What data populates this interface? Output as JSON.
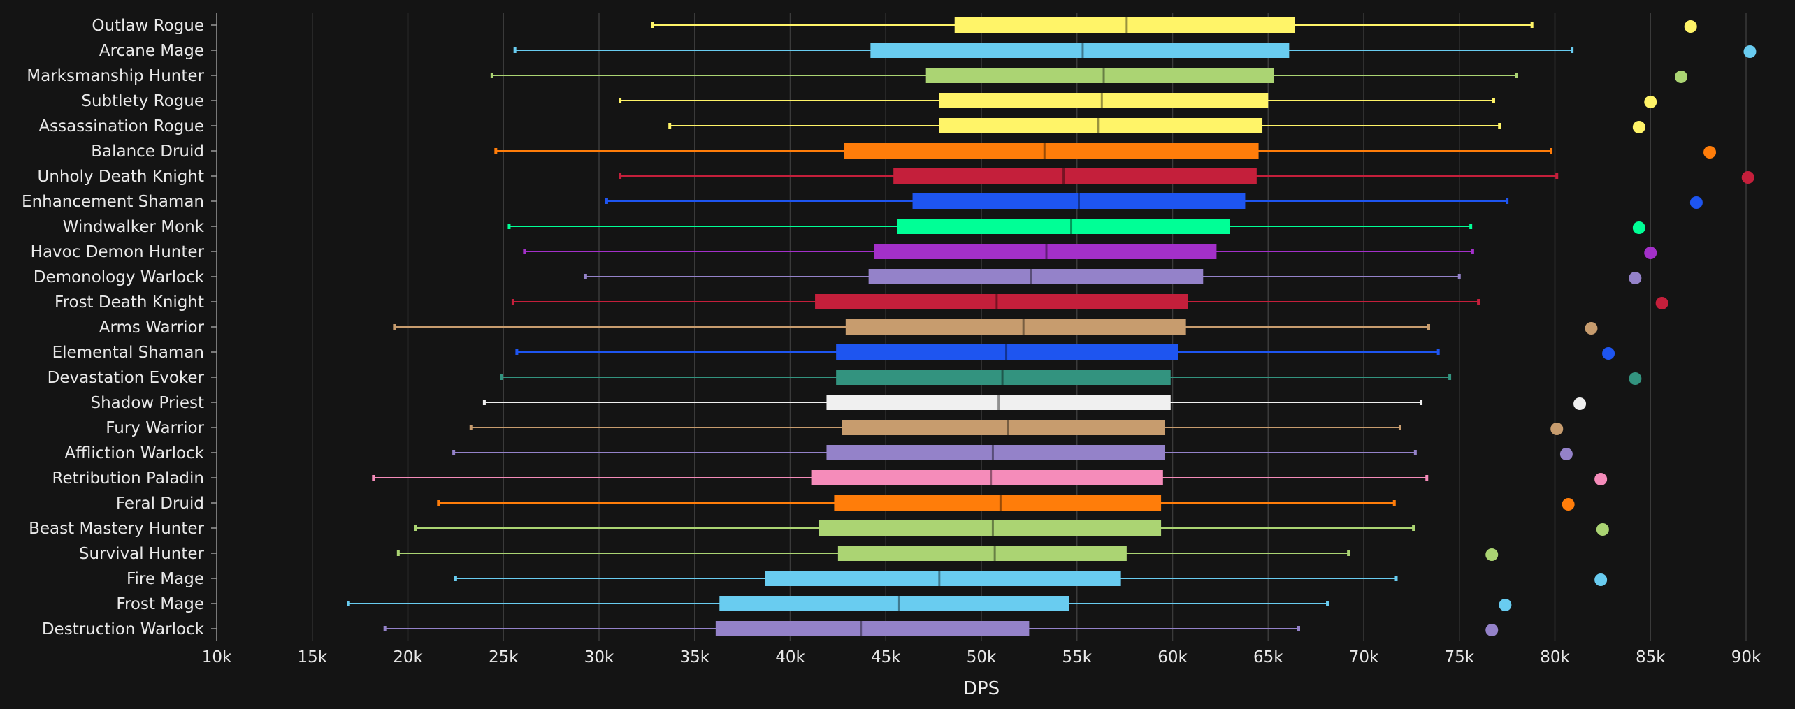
{
  "chart_data": {
    "type": "box",
    "xlabel": "DPS",
    "ylabel": "",
    "xlim": [
      10000,
      90000
    ],
    "x_ticks": [
      10000,
      15000,
      20000,
      25000,
      30000,
      35000,
      40000,
      45000,
      50000,
      55000,
      60000,
      65000,
      70000,
      75000,
      80000,
      85000,
      90000
    ],
    "x_tick_labels": [
      "10k",
      "15k",
      "20k",
      "25k",
      "30k",
      "35k",
      "40k",
      "45k",
      "50k",
      "55k",
      "60k",
      "65k",
      "70k",
      "75k",
      "80k",
      "85k",
      "90k"
    ],
    "grid": "vertical",
    "series": [
      {
        "name": "Outlaw Rogue",
        "color": "#fff468",
        "min": 32800,
        "q1": 48600,
        "median": 57600,
        "q3": 66400,
        "max": 78800,
        "outlier": 87100
      },
      {
        "name": "Arcane Mage",
        "color": "#69ccf0",
        "min": 25600,
        "q1": 44200,
        "median": 55300,
        "q3": 66100,
        "max": 80900,
        "outlier": 90200
      },
      {
        "name": "Marksmanship Hunter",
        "color": "#abd473",
        "min": 24400,
        "q1": 47100,
        "median": 56400,
        "q3": 65300,
        "max": 78000,
        "outlier": 86600
      },
      {
        "name": "Subtlety Rogue",
        "color": "#fff468",
        "min": 31100,
        "q1": 47800,
        "median": 56300,
        "q3": 65000,
        "max": 76800,
        "outlier": 85000
      },
      {
        "name": "Assassination Rogue",
        "color": "#fff468",
        "min": 33700,
        "q1": 47800,
        "median": 56100,
        "q3": 64700,
        "max": 77100,
        "outlier": 84400
      },
      {
        "name": "Balance Druid",
        "color": "#ff7d0a",
        "min": 24600,
        "q1": 42800,
        "median": 53300,
        "q3": 64500,
        "max": 79800,
        "outlier": 88100
      },
      {
        "name": "Unholy Death Knight",
        "color": "#c41f3b",
        "min": 31100,
        "q1": 45400,
        "median": 54300,
        "q3": 64400,
        "max": 80100,
        "outlier": 90100
      },
      {
        "name": "Enhancement Shaman",
        "color": "#1e55f0",
        "min": 30400,
        "q1": 46400,
        "median": 55100,
        "q3": 63800,
        "max": 77500,
        "outlier": 87400
      },
      {
        "name": "Windwalker Monk",
        "color": "#00ff96",
        "min": 25300,
        "q1": 45600,
        "median": 54700,
        "q3": 63000,
        "max": 75600,
        "outlier": 84400
      },
      {
        "name": "Havoc Demon Hunter",
        "color": "#a330c9",
        "min": 26100,
        "q1": 44400,
        "median": 53400,
        "q3": 62300,
        "max": 75700,
        "outlier": 85000
      },
      {
        "name": "Demonology Warlock",
        "color": "#9482c9",
        "min": 29300,
        "q1": 44100,
        "median": 52600,
        "q3": 61600,
        "max": 75000,
        "outlier": 84200
      },
      {
        "name": "Frost Death Knight",
        "color": "#c41f3b",
        "min": 25500,
        "q1": 41300,
        "median": 50800,
        "q3": 60800,
        "max": 76000,
        "outlier": 85600
      },
      {
        "name": "Arms Warrior",
        "color": "#c79c6e",
        "min": 19300,
        "q1": 42900,
        "median": 52200,
        "q3": 60700,
        "max": 73400,
        "outlier": 81900
      },
      {
        "name": "Elemental Shaman",
        "color": "#1e55f0",
        "min": 25700,
        "q1": 42400,
        "median": 51300,
        "q3": 60300,
        "max": 73900,
        "outlier": 82800
      },
      {
        "name": "Devastation Evoker",
        "color": "#33937f",
        "min": 24900,
        "q1": 42400,
        "median": 51100,
        "q3": 59900,
        "max": 74500,
        "outlier": 84200
      },
      {
        "name": "Shadow Priest",
        "color": "#f0f0f0",
        "min": 24000,
        "q1": 41900,
        "median": 50900,
        "q3": 59900,
        "max": 73000,
        "outlier": 81300
      },
      {
        "name": "Fury Warrior",
        "color": "#c79c6e",
        "min": 23300,
        "q1": 42700,
        "median": 51400,
        "q3": 59600,
        "max": 71900,
        "outlier": 80100
      },
      {
        "name": "Affliction Warlock",
        "color": "#9482c9",
        "min": 22400,
        "q1": 41900,
        "median": 50600,
        "q3": 59600,
        "max": 72700,
        "outlier": 80600
      },
      {
        "name": "Retribution Paladin",
        "color": "#f58cba",
        "min": 18200,
        "q1": 41100,
        "median": 50500,
        "q3": 59500,
        "max": 73300,
        "outlier": 82400
      },
      {
        "name": "Feral Druid",
        "color": "#ff7d0a",
        "min": 21600,
        "q1": 42300,
        "median": 51000,
        "q3": 59400,
        "max": 71600,
        "outlier": 80700
      },
      {
        "name": "Beast Mastery Hunter",
        "color": "#abd473",
        "min": 20400,
        "q1": 41500,
        "median": 50600,
        "q3": 59400,
        "max": 72600,
        "outlier": 82500
      },
      {
        "name": "Survival Hunter",
        "color": "#abd473",
        "min": 19500,
        "q1": 42500,
        "median": 50700,
        "q3": 57600,
        "max": 69200,
        "outlier": 76700
      },
      {
        "name": "Fire Mage",
        "color": "#69ccf0",
        "min": 22500,
        "q1": 38700,
        "median": 47800,
        "q3": 57300,
        "max": 71700,
        "outlier": 82400
      },
      {
        "name": "Frost Mage",
        "color": "#69ccf0",
        "min": 16900,
        "q1": 36300,
        "median": 45700,
        "q3": 54600,
        "max": 68100,
        "outlier": 77400
      },
      {
        "name": "Destruction Warlock",
        "color": "#9482c9",
        "min": 18800,
        "q1": 36100,
        "median": 43700,
        "q3": 52500,
        "max": 66600,
        "outlier": 76700
      }
    ]
  }
}
